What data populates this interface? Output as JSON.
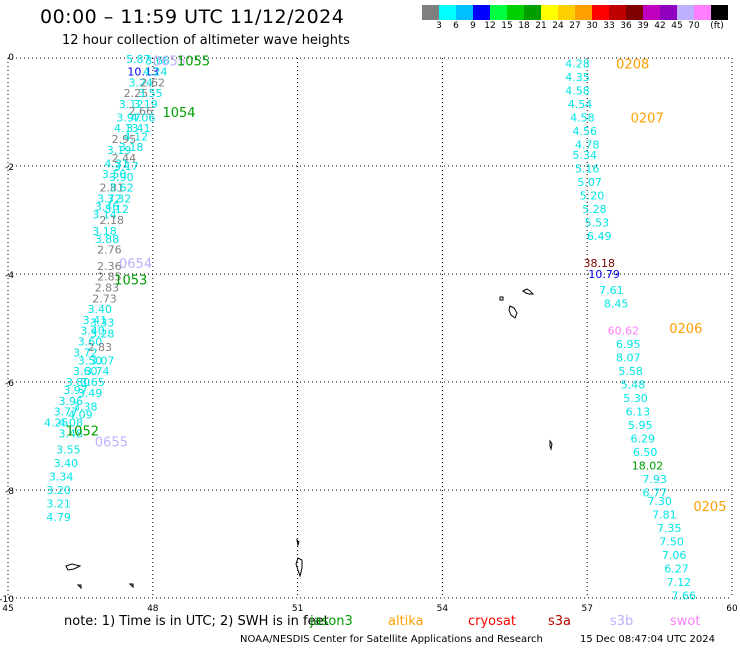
{
  "header": {
    "title": "00:00 – 11:59 UTC 11/12/2024",
    "subtitle": "12 hour collection of altimeter wave heights"
  },
  "colorbar": {
    "colors": [
      "#7f7f7f",
      "#00ffff",
      "#00bfff",
      "#0000ff",
      "#00ff3f",
      "#00cf00",
      "#009f00",
      "#ffff00",
      "#ffcf00",
      "#ff9f00",
      "#ff0000",
      "#bf0000",
      "#7f0000",
      "#bf00bf",
      "#8f00bf",
      "#bfafff",
      "#ff7fff",
      "#000000"
    ],
    "labels": [
      "3",
      "6",
      "9",
      "12",
      "15",
      "18",
      "21",
      "24",
      "27",
      "30",
      "33",
      "36",
      "39",
      "42",
      "45",
      "70",
      "(ft)"
    ]
  },
  "axes": {
    "x_ticks": [
      "45",
      "48",
      "51",
      "54",
      "57",
      "60"
    ],
    "y_ticks": [
      "0",
      "-2",
      "-4",
      "-6",
      "-8",
      "-10"
    ]
  },
  "chart_data": {
    "type": "scatter",
    "xlim": [
      45,
      60
    ],
    "ylim": [
      -10,
      0
    ],
    "grid": true,
    "tracks": [
      {
        "label": "0655",
        "satellite": "s3b",
        "color": "#bfafff",
        "x": 48.0,
        "y": -0.05
      },
      {
        "label": "1055",
        "satellite": "jason3",
        "color": "#009f00",
        "x": 48.5,
        "y": -0.05
      },
      {
        "label": "1054",
        "satellite": "jason3",
        "color": "#009f00",
        "x": 48.2,
        "y": -1.0
      },
      {
        "label": "0654",
        "satellite": "s3b",
        "color": "#bfafff",
        "x": 47.3,
        "y": -3.8
      },
      {
        "label": "1053",
        "satellite": "jason3",
        "color": "#009f00",
        "x": 47.2,
        "y": -4.1
      },
      {
        "label": "1052",
        "satellite": "jason3",
        "color": "#009f00",
        "x": 46.2,
        "y": -6.9
      },
      {
        "label": "0655",
        "satellite": "s3b",
        "color": "#bfafff",
        "x": 46.8,
        "y": -7.1
      },
      {
        "label": "0208",
        "satellite": "altika",
        "color": "#ff9f00",
        "x": 57.6,
        "y": -0.1
      },
      {
        "label": "0207",
        "satellite": "altika",
        "color": "#ff9f00",
        "x": 57.9,
        "y": -1.1
      },
      {
        "label": "0206",
        "satellite": "altika",
        "color": "#ff9f00",
        "x": 58.7,
        "y": -5.0
      },
      {
        "label": "0205",
        "satellite": "altika",
        "color": "#ff9f00",
        "x": 59.2,
        "y": -8.3
      }
    ],
    "values": [
      {
        "x": 47.7,
        "y": -0.02,
        "v": "5.87",
        "c": "#00e5e5"
      },
      {
        "x": 48.1,
        "y": -0.05,
        "v": "3.66",
        "c": "#00e5e5"
      },
      {
        "x": 47.8,
        "y": -0.25,
        "v": "10.13",
        "c": "#0000ff"
      },
      {
        "x": 48.05,
        "y": -0.25,
        "v": "4.24",
        "c": "#00e5e5"
      },
      {
        "x": 47.75,
        "y": -0.45,
        "v": "3.24",
        "c": "#00e5e5"
      },
      {
        "x": 48.0,
        "y": -0.45,
        "v": "2.62",
        "c": "#7f7f7f"
      },
      {
        "x": 47.65,
        "y": -0.65,
        "v": "2.25",
        "c": "#7f7f7f"
      },
      {
        "x": 47.95,
        "y": -0.65,
        "v": "3.55",
        "c": "#00e5e5"
      },
      {
        "x": 47.55,
        "y": -0.85,
        "v": "3.12",
        "c": "#00e5e5"
      },
      {
        "x": 47.85,
        "y": -0.85,
        "v": "3.19",
        "c": "#00e5e5"
      },
      {
        "x": 47.75,
        "y": -0.98,
        "v": "2.66",
        "c": "#7f7f7f"
      },
      {
        "x": 47.5,
        "y": -1.1,
        "v": "3.97",
        "c": "#00e5e5"
      },
      {
        "x": 47.8,
        "y": -1.1,
        "v": "4.06",
        "c": "#00e5e5"
      },
      {
        "x": 47.45,
        "y": -1.3,
        "v": "4.13",
        "c": "#00e5e5"
      },
      {
        "x": 47.7,
        "y": -1.3,
        "v": "3.41",
        "c": "#00e5e5"
      },
      {
        "x": 47.4,
        "y": -1.5,
        "v": "2.95",
        "c": "#7f7f7f"
      },
      {
        "x": 47.65,
        "y": -1.45,
        "v": "4.12",
        "c": "#00e5e5"
      },
      {
        "x": 47.3,
        "y": -1.7,
        "v": "3.19",
        "c": "#00e5e5"
      },
      {
        "x": 47.55,
        "y": -1.65,
        "v": "3.18",
        "c": "#00e5e5"
      },
      {
        "x": 47.4,
        "y": -1.85,
        "v": "2.44",
        "c": "#7f7f7f"
      },
      {
        "x": 47.25,
        "y": -1.95,
        "v": "4.31",
        "c": "#00e5e5"
      },
      {
        "x": 47.45,
        "y": -2.0,
        "v": "3.17",
        "c": "#00e5e5"
      },
      {
        "x": 47.2,
        "y": -2.15,
        "v": "3.50",
        "c": "#00e5e5"
      },
      {
        "x": 47.35,
        "y": -2.2,
        "v": "3.90",
        "c": "#00e5e5"
      },
      {
        "x": 47.15,
        "y": -2.4,
        "v": "2.81",
        "c": "#7f7f7f"
      },
      {
        "x": 47.35,
        "y": -2.4,
        "v": "3.62",
        "c": "#00e5e5"
      },
      {
        "x": 47.1,
        "y": -2.6,
        "v": "3.72",
        "c": "#00e5e5"
      },
      {
        "x": 47.3,
        "y": -2.6,
        "v": "3.32",
        "c": "#00e5e5"
      },
      {
        "x": 47.05,
        "y": -2.75,
        "v": "3.46",
        "c": "#00e5e5"
      },
      {
        "x": 47.25,
        "y": -2.8,
        "v": "3.12",
        "c": "#00e5e5"
      },
      {
        "x": 47.0,
        "y": -2.9,
        "v": "3.14",
        "c": "#00e5e5"
      },
      {
        "x": 47.15,
        "y": -3.0,
        "v": "2.18",
        "c": "#7f7f7f"
      },
      {
        "x": 47.0,
        "y": -3.2,
        "v": "3.18",
        "c": "#00e5e5"
      },
      {
        "x": 47.05,
        "y": -3.35,
        "v": "3.88",
        "c": "#00e5e5"
      },
      {
        "x": 47.1,
        "y": -3.55,
        "v": "2.76",
        "c": "#7f7f7f"
      },
      {
        "x": 47.1,
        "y": -3.85,
        "v": "2.36",
        "c": "#7f7f7f"
      },
      {
        "x": 47.1,
        "y": -4.05,
        "v": "2.85",
        "c": "#7f7f7f"
      },
      {
        "x": 47.05,
        "y": -4.25,
        "v": "2.83",
        "c": "#7f7f7f"
      },
      {
        "x": 47.0,
        "y": -4.45,
        "v": "2.73",
        "c": "#7f7f7f"
      },
      {
        "x": 46.9,
        "y": -4.65,
        "v": "3.40",
        "c": "#00e5e5"
      },
      {
        "x": 46.8,
        "y": -4.85,
        "v": "3.41",
        "c": "#00e5e5"
      },
      {
        "x": 46.95,
        "y": -4.9,
        "v": "3.33",
        "c": "#00e5e5"
      },
      {
        "x": 46.75,
        "y": -5.05,
        "v": "3.40",
        "c": "#00e5e5"
      },
      {
        "x": 46.95,
        "y": -5.1,
        "v": "3.28",
        "c": "#00e5e5"
      },
      {
        "x": 46.7,
        "y": -5.25,
        "v": "3.60",
        "c": "#00e5e5"
      },
      {
        "x": 46.9,
        "y": -5.35,
        "v": "2.83",
        "c": "#7f7f7f"
      },
      {
        "x": 46.6,
        "y": -5.45,
        "v": "3.72",
        "c": "#00e5e5"
      },
      {
        "x": 46.7,
        "y": -5.6,
        "v": "3.50",
        "c": "#00e5e5"
      },
      {
        "x": 46.95,
        "y": -5.6,
        "v": "3.07",
        "c": "#00e5e5"
      },
      {
        "x": 46.6,
        "y": -5.8,
        "v": "3.60",
        "c": "#00e5e5"
      },
      {
        "x": 46.85,
        "y": -5.8,
        "v": "3.74",
        "c": "#00e5e5"
      },
      {
        "x": 46.45,
        "y": -6.0,
        "v": "3.80",
        "c": "#00e5e5"
      },
      {
        "x": 46.75,
        "y": -6.0,
        "v": "3.65",
        "c": "#00e5e5"
      },
      {
        "x": 46.4,
        "y": -6.15,
        "v": "3.97",
        "c": "#00e5e5"
      },
      {
        "x": 46.7,
        "y": -6.2,
        "v": "3.49",
        "c": "#00e5e5"
      },
      {
        "x": 46.3,
        "y": -6.35,
        "v": "3.96",
        "c": "#00e5e5"
      },
      {
        "x": 46.6,
        "y": -6.45,
        "v": "3.38",
        "c": "#00e5e5"
      },
      {
        "x": 46.2,
        "y": -6.55,
        "v": "3.77",
        "c": "#00e5e5"
      },
      {
        "x": 46.5,
        "y": -6.6,
        "v": "4.09",
        "c": "#00e5e5"
      },
      {
        "x": 46.0,
        "y": -6.75,
        "v": "4.25",
        "c": "#00e5e5"
      },
      {
        "x": 46.3,
        "y": -6.75,
        "v": "4.08",
        "c": "#00e5e5"
      },
      {
        "x": 46.3,
        "y": -6.95,
        "v": "3.48",
        "c": "#00e5e5"
      },
      {
        "x": 46.25,
        "y": -7.25,
        "v": "3.55",
        "c": "#00e5e5"
      },
      {
        "x": 46.2,
        "y": -7.5,
        "v": "3.40",
        "c": "#00e5e5"
      },
      {
        "x": 46.1,
        "y": -7.75,
        "v": "3.34",
        "c": "#00e5e5"
      },
      {
        "x": 46.05,
        "y": -8.0,
        "v": "3.20",
        "c": "#00e5e5"
      },
      {
        "x": 46.05,
        "y": -8.25,
        "v": "3.21",
        "c": "#00e5e5"
      },
      {
        "x": 46.05,
        "y": -8.5,
        "v": "4.79",
        "c": "#00e5e5"
      },
      {
        "x": 56.8,
        "y": -0.1,
        "v": "4.28",
        "c": "#00e5e5"
      },
      {
        "x": 56.8,
        "y": -0.35,
        "v": "4.35",
        "c": "#00e5e5"
      },
      {
        "x": 56.8,
        "y": -0.6,
        "v": "4.58",
        "c": "#00e5e5"
      },
      {
        "x": 56.85,
        "y": -0.85,
        "v": "4.54",
        "c": "#00e5e5"
      },
      {
        "x": 56.9,
        "y": -1.1,
        "v": "4.58",
        "c": "#00e5e5"
      },
      {
        "x": 56.95,
        "y": -1.35,
        "v": "4.56",
        "c": "#00e5e5"
      },
      {
        "x": 57.0,
        "y": -1.6,
        "v": "4.78",
        "c": "#00e5e5"
      },
      {
        "x": 56.95,
        "y": -1.8,
        "v": "5.34",
        "c": "#00e5e5"
      },
      {
        "x": 57.0,
        "y": -2.05,
        "v": "5.16",
        "c": "#00e5e5"
      },
      {
        "x": 57.05,
        "y": -2.3,
        "v": "5.07",
        "c": "#00e5e5"
      },
      {
        "x": 57.1,
        "y": -2.55,
        "v": "5.20",
        "c": "#00e5e5"
      },
      {
        "x": 57.15,
        "y": -2.8,
        "v": "5.28",
        "c": "#00e5e5"
      },
      {
        "x": 57.2,
        "y": -3.05,
        "v": "5.53",
        "c": "#00e5e5"
      },
      {
        "x": 57.25,
        "y": -3.3,
        "v": "6.49",
        "c": "#00e5e5"
      },
      {
        "x": 57.25,
        "y": -3.8,
        "v": "38.18",
        "c": "#7f0000"
      },
      {
        "x": 57.35,
        "y": -4.0,
        "v": "10.79",
        "c": "#0000ff"
      },
      {
        "x": 57.5,
        "y": -4.3,
        "v": "7.61",
        "c": "#00e5e5"
      },
      {
        "x": 57.6,
        "y": -4.55,
        "v": "8.45",
        "c": "#00e5e5"
      },
      {
        "x": 57.75,
        "y": -5.05,
        "v": "60.62",
        "c": "#ff7fff"
      },
      {
        "x": 57.85,
        "y": -5.3,
        "v": "6.95",
        "c": "#00e5e5"
      },
      {
        "x": 57.85,
        "y": -5.55,
        "v": "8.07",
        "c": "#00e5e5"
      },
      {
        "x": 57.9,
        "y": -5.8,
        "v": "5.58",
        "c": "#00e5e5"
      },
      {
        "x": 57.95,
        "y": -6.05,
        "v": "5.48",
        "c": "#00e5e5"
      },
      {
        "x": 58.0,
        "y": -6.3,
        "v": "5.30",
        "c": "#00e5e5"
      },
      {
        "x": 58.05,
        "y": -6.55,
        "v": "6.13",
        "c": "#00e5e5"
      },
      {
        "x": 58.1,
        "y": -6.8,
        "v": "5.95",
        "c": "#00e5e5"
      },
      {
        "x": 58.15,
        "y": -7.05,
        "v": "6.29",
        "c": "#00e5e5"
      },
      {
        "x": 58.2,
        "y": -7.3,
        "v": "6.50",
        "c": "#00e5e5"
      },
      {
        "x": 58.25,
        "y": -7.55,
        "v": "18.02",
        "c": "#009f00"
      },
      {
        "x": 58.4,
        "y": -7.8,
        "v": "7.93",
        "c": "#00e5e5"
      },
      {
        "x": 58.4,
        "y": -8.05,
        "v": "6.77",
        "c": "#00e5e5"
      },
      {
        "x": 58.5,
        "y": -8.2,
        "v": "7.30",
        "c": "#00e5e5"
      },
      {
        "x": 58.6,
        "y": -8.45,
        "v": "7.81",
        "c": "#00e5e5"
      },
      {
        "x": 58.7,
        "y": -8.7,
        "v": "7.35",
        "c": "#00e5e5"
      },
      {
        "x": 58.75,
        "y": -8.95,
        "v": "7.50",
        "c": "#00e5e5"
      },
      {
        "x": 58.8,
        "y": -9.2,
        "v": "7.06",
        "c": "#00e5e5"
      },
      {
        "x": 58.85,
        "y": -9.45,
        "v": "6.27",
        "c": "#00e5e5"
      },
      {
        "x": 58.9,
        "y": -9.7,
        "v": "7.12",
        "c": "#00e5e5"
      },
      {
        "x": 59.0,
        "y": -9.95,
        "v": "7.66",
        "c": "#00e5e5"
      }
    ]
  },
  "footer": {
    "note": "note: 1) Time is in UTC; 2) SWH is in feet",
    "satellites": [
      {
        "name": "jason3",
        "color": "#009f00"
      },
      {
        "name": "altika",
        "color": "#ff9f00"
      },
      {
        "name": "cryosat",
        "color": "#ff0000"
      },
      {
        "name": "s3a",
        "color": "#bf0000"
      },
      {
        "name": "s3b",
        "color": "#bfafff"
      },
      {
        "name": "swot",
        "color": "#ff7fff"
      }
    ],
    "credit": "NOAA/NESDIS Center for Satellite Applications and Research",
    "timestamp": "15 Dec 08:47:04 UTC 2024"
  }
}
